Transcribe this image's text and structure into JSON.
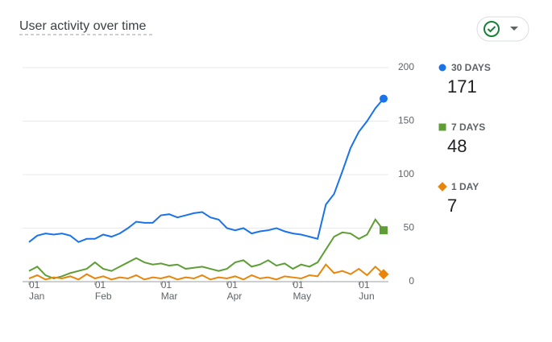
{
  "chart_data": {
    "type": "line",
    "title": "User activity over time",
    "x": [
      "Jan 01",
      "Jan 05",
      "Jan 09",
      "Jan 13",
      "Jan 17",
      "Jan 21",
      "Jan 25",
      "Jan 29",
      "Feb 01",
      "Feb 05",
      "Feb 09",
      "Feb 13",
      "Feb 17",
      "Feb 21",
      "Feb 25",
      "Feb 29",
      "Mar 01",
      "Mar 05",
      "Mar 09",
      "Mar 13",
      "Mar 17",
      "Mar 21",
      "Mar 25",
      "Mar 29",
      "Apr 01",
      "Apr 05",
      "Apr 09",
      "Apr 13",
      "Apr 17",
      "Apr 21",
      "Apr 25",
      "Apr 29",
      "May 01",
      "May 05",
      "May 09",
      "May 13",
      "May 17",
      "May 21",
      "May 25",
      "May 29",
      "Jun 01",
      "Jun 05",
      "Jun 09",
      "Jun 12"
    ],
    "xticks": [
      {
        "value": "Jan 01",
        "day": "01",
        "month": "Jan"
      },
      {
        "value": "Feb 01",
        "day": "01",
        "month": "Feb"
      },
      {
        "value": "Mar 01",
        "day": "01",
        "month": "Mar"
      },
      {
        "value": "Apr 01",
        "day": "01",
        "month": "Apr"
      },
      {
        "value": "May 01",
        "day": "01",
        "month": "May"
      },
      {
        "value": "Jun 01",
        "day": "01",
        "month": "Jun"
      }
    ],
    "ylim": [
      0,
      200
    ],
    "yticks": [
      0,
      50,
      100,
      150,
      200
    ],
    "grid": true,
    "series": [
      {
        "name": "30 DAYS",
        "color": "#1a73e8",
        "marker": "circle",
        "values": [
          37,
          43,
          45,
          44,
          45,
          43,
          37,
          40,
          40,
          44,
          42,
          45,
          50,
          56,
          55,
          55,
          62,
          63,
          60,
          62,
          64,
          65,
          60,
          58,
          50,
          48,
          50,
          45,
          47,
          48,
          50,
          47,
          45,
          44,
          42,
          40,
          72,
          82,
          103,
          125,
          140,
          150,
          162,
          171
        ]
      },
      {
        "name": "7 DAYS",
        "color": "#5f9e36",
        "marker": "square",
        "values": [
          10,
          14,
          6,
          3,
          5,
          8,
          10,
          12,
          18,
          12,
          10,
          14,
          18,
          22,
          18,
          16,
          17,
          15,
          16,
          12,
          13,
          14,
          12,
          10,
          12,
          18,
          20,
          14,
          16,
          20,
          15,
          17,
          12,
          16,
          14,
          18,
          30,
          42,
          46,
          45,
          40,
          44,
          58,
          48
        ]
      },
      {
        "name": "1 DAY",
        "color": "#e8860b",
        "marker": "diamond",
        "values": [
          3,
          6,
          2,
          4,
          3,
          5,
          2,
          7,
          3,
          5,
          2,
          4,
          3,
          6,
          2,
          4,
          3,
          5,
          2,
          4,
          3,
          6,
          2,
          4,
          3,
          5,
          2,
          6,
          3,
          4,
          2,
          5,
          4,
          3,
          6,
          5,
          16,
          8,
          10,
          7,
          12,
          6,
          14,
          7
        ]
      }
    ]
  }
}
